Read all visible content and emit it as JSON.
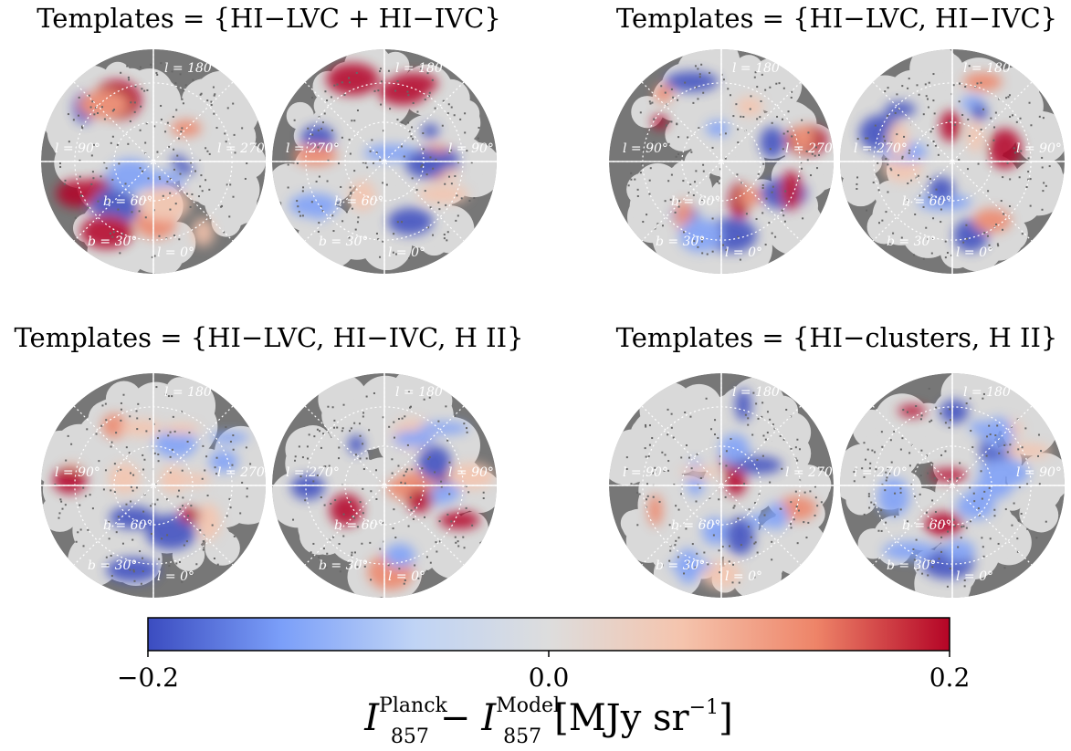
{
  "chart_data": {
    "type": "map",
    "panels": [
      {
        "title": "Templates = {HI−LVC + HI−IVC}"
      },
      {
        "title": "Templates = {HI−LVC, HI−IVC}"
      },
      {
        "title": "Templates = {HI−LVC, HI−IVC, H II}"
      },
      {
        "title": "Templates = {HI−clusters, H II}"
      }
    ],
    "hemispheres": [
      {
        "top": "l = 180°",
        "left": "l = 90°",
        "right": "l = 270°",
        "bottom": "l = 0°",
        "inner": "b = 60°",
        "outer": "b = 30°"
      },
      {
        "top": "l = 180°",
        "left": "l = 270°",
        "right": "l = 90°",
        "bottom": "l = 0°",
        "inner": "b = 60°",
        "outer": "b = 30°"
      }
    ],
    "colormap": [
      "#3b4cc0",
      "#7b9ff9",
      "#c0d4f5",
      "#dddddd",
      "#f5c4ad",
      "#ee8468",
      "#b40426"
    ],
    "colorbar": {
      "lim": [
        -0.2,
        0.2
      ],
      "ticks": [
        {
          "value": -0.2,
          "label": "−0.2"
        },
        {
          "value": 0,
          "label": "0.0"
        },
        {
          "value": 0.2,
          "label": "0.2"
        }
      ],
      "label": {
        "base": "I",
        "subscript": "857",
        "sup_a": "Planck",
        "minus": "−",
        "sup_b": "Model",
        "unit": "[MJy sr",
        "unit_power": "−1",
        "unit_close": "]"
      }
    }
  }
}
